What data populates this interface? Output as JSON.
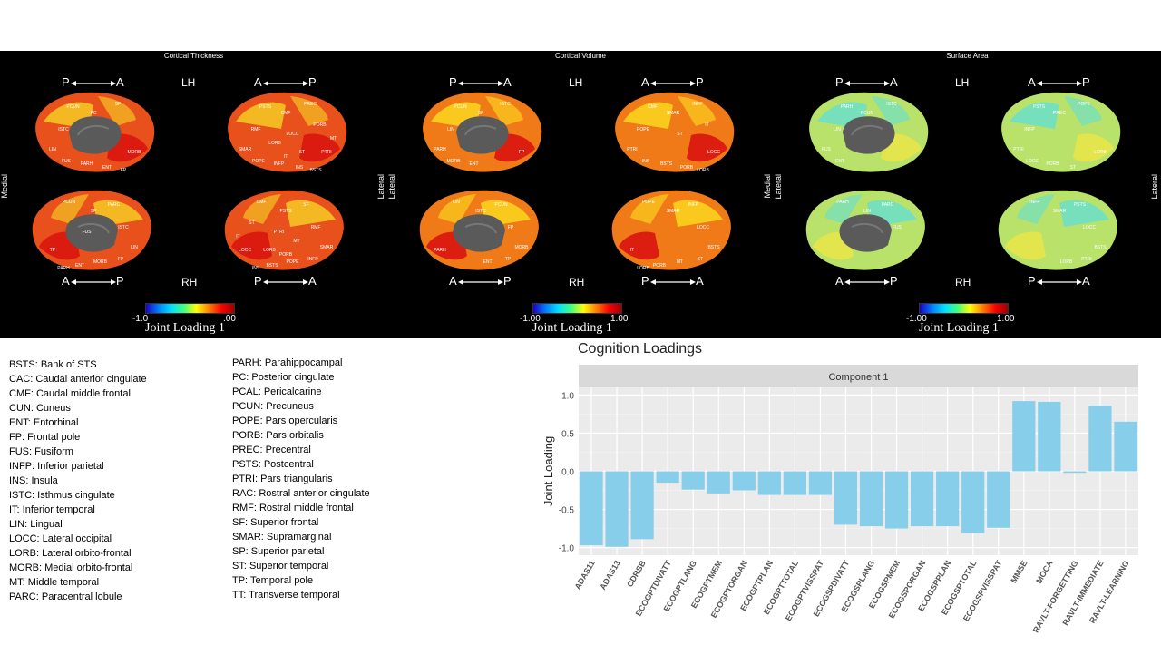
{
  "panels": [
    {
      "title": "Cortical Thickness",
      "hemis": [
        "LH",
        "RH"
      ],
      "dirs_top": [
        "P",
        "A",
        "A",
        "P"
      ],
      "dirs_bottom": [
        "A",
        "P",
        "P",
        "A"
      ],
      "side_left": "Medial",
      "side_right": "Lateral",
      "colorbar_min": "-1.0",
      "colorbar_max": ".00",
      "colorbar_title": "Joint Loading 1",
      "fill": "#e8501c",
      "accent": "#f5c323",
      "hot": "#d9140f",
      "labels_lm": [
        "PCUN",
        "PC",
        "SF",
        "ISTC",
        "LIN",
        "FUS",
        "PARH",
        "MORB",
        "ENT",
        "FP"
      ],
      "labels_ll": [
        "PSTS",
        "CMF",
        "PREC",
        "RMF",
        "SMAR",
        "POPE",
        "INFP",
        "PTRI",
        "INS",
        "BSTS",
        "LOCC",
        "PORB",
        "LORB",
        "MT",
        "ST",
        "IT"
      ],
      "labels_rm": [
        "PARC",
        "SF",
        "PCUN",
        "ISTC",
        "LIN",
        "FP",
        "MORB",
        "TP",
        "ENT",
        "PARH",
        "FUS"
      ],
      "labels_rl": [
        "SF",
        "PSTS",
        "CMF",
        "RMF",
        "SMAR",
        "INFP",
        "POPE",
        "LOCC",
        "BSTS",
        "INS",
        "PTRI",
        "ST",
        "MT",
        "IT",
        "LORB",
        "PORB"
      ]
    },
    {
      "title": "Cortical Volume",
      "hemis": [
        "LH",
        "RH"
      ],
      "dirs_top": [
        "P",
        "A",
        "A",
        "P"
      ],
      "dirs_bottom": [
        "A",
        "P",
        "P",
        "A"
      ],
      "side_left": "Lateral",
      "side_right": "Medial",
      "colorbar_min": "-1.00",
      "colorbar_max": "1.00",
      "colorbar_title": "Joint Loading 1",
      "fill": "#f07a18",
      "accent": "#f9d21e",
      "hot": "#d9140f",
      "labels_lm": [
        "PCUN",
        "SF",
        "ISTC",
        "LIN",
        "PARH",
        "MORB",
        "ENT",
        "FP"
      ],
      "labels_ll": [
        "CMF",
        "SMAR",
        "INFP",
        "POPE",
        "PTRI",
        "INS",
        "BSTS",
        "LOCC",
        "PORB",
        "LORB",
        "ST",
        "IT"
      ],
      "labels_rm": [
        "PCUN",
        "ISTC",
        "LIN",
        "FP",
        "MORB",
        "TP",
        "ENT",
        "PARH"
      ],
      "labels_rl": [
        "INFP",
        "SMAR",
        "POPE",
        "LOCC",
        "BSTS",
        "ST",
        "MT",
        "IT",
        "PORB",
        "LORB"
      ]
    },
    {
      "title": "Surface Area",
      "hemis": [
        "LH",
        "RH"
      ],
      "dirs_top": [
        "P",
        "A",
        "A",
        "P"
      ],
      "dirs_bottom": [
        "A",
        "P",
        "P",
        "A"
      ],
      "side_left": "Lateral",
      "side_right": "Lateral",
      "colorbar_min": "-1.00",
      "colorbar_max": "1.00",
      "colorbar_title": "Joint Loading 1",
      "fill": "#b8e26a",
      "accent": "#6fe0c6",
      "hot": "#e8e54a",
      "labels_lm": [
        "PARH",
        "PCUN",
        "ISTC",
        "LIN",
        "FUS",
        "ENT"
      ],
      "labels_ll": [
        "PSTS",
        "PREC",
        "POPE",
        "INFP",
        "PTRI",
        "LOCC",
        "PORB",
        "LORB",
        "ST"
      ],
      "labels_rm": [
        "PARC",
        "LIN",
        "PARH",
        "FUS"
      ],
      "labels_rl": [
        "PSTS",
        "SMAR",
        "INFP",
        "LOCC",
        "BSTS",
        "PTRI",
        "LORB"
      ]
    }
  ],
  "legend_col1": [
    "BSTS:  Bank of STS",
    "CAC: Caudal anterior cingulate",
    "CMF: Caudal middle frontal",
    "CUN: Cuneus",
    "ENT: Entorhinal",
    "FP: Frontal pole",
    "FUS: Fusiform",
    "INFP: Inferior parietal",
    "INS: Insula",
    "ISTC: Isthmus cingulate",
    "IT: Inferior temporal",
    "LIN: Lingual",
    "LOCC: Lateral occipital",
    "LORB: Lateral orbito-frontal",
    "MORB: Medial orbito-frontal",
    "MT: Middle temporal",
    "PARC: Paracentral lobule"
  ],
  "legend_col2": [
    "PARH: Parahippocampal",
    "PC: Posterior cingulate",
    "PCAL: Pericalcarine",
    "PCUN:  Precuneus",
    "POPE: Pars opercularis",
    "PORB: Pars orbitalis",
    "PREC: Precentral",
    "PSTS: Postcentral",
    "PTRI: Pars triangularis",
    "RAC: Rostral anterior cingulate",
    "RMF: Rostral middle frontal",
    "SF: Superior frontal",
    "SMAR:  Supramarginal",
    "SP: Superior parietal",
    "ST: Superior temporal",
    "TP: Temporal pole",
    "TT: Transverse temporal"
  ],
  "chart_data": {
    "type": "bar",
    "title": "Cognition Loadings",
    "facet": "Component 1",
    "ylabel": "Joint Loading",
    "xlabel": "",
    "ylim": [
      -1.1,
      1.1
    ],
    "yticks": [
      "1.0",
      "0.5",
      "0.0",
      "-0.5",
      "-1.0"
    ],
    "grid": true,
    "bar_color": "#87ceeb",
    "categories": [
      "ADAS11",
      "ADAS13",
      "CDRSB",
      "ECOGPTDIVATT",
      "ECOGPTLANG",
      "ECOGPTMEM",
      "ECOGPTORGAN",
      "ECOGPTPLAN",
      "ECOGPTTOTAL",
      "ECOGPTVISSPAT",
      "ECOGSPDIVATT",
      "ECOGSPLANG",
      "ECOGSPMEM",
      "ECOGSPORGAN",
      "ECOGSPPLAN",
      "ECOGSPTOTAL",
      "ECOGSPVISSPAT",
      "MMSE",
      "MOCA",
      "RAVLT-FORGETTING",
      "RAVLT-IMMEDIATE",
      "RAVLT-LEARNING"
    ],
    "values": [
      -0.97,
      -0.99,
      -0.89,
      -0.15,
      -0.24,
      -0.29,
      -0.25,
      -0.31,
      -0.31,
      -0.31,
      -0.7,
      -0.72,
      -0.75,
      -0.72,
      -0.72,
      -0.81,
      -0.74,
      0.92,
      0.91,
      -0.02,
      0.86,
      0.65
    ]
  }
}
